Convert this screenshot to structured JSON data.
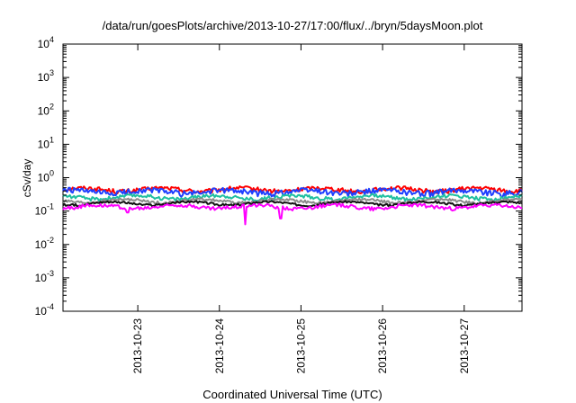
{
  "chart_data": {
    "type": "line",
    "title": "/data/run/goesPlots/archive/2013-10-27/17:00/flux/../bryn/5daysMoon.plot",
    "xlabel": "Coordinated Universal Time (UTC)",
    "ylabel": "cSv/day",
    "yscale": "log",
    "ylim": [
      0.0001,
      10000
    ],
    "y_ticks": [
      {
        "value": 0.0001,
        "base": "10",
        "exp": "-4"
      },
      {
        "value": 0.001,
        "base": "10",
        "exp": "-3"
      },
      {
        "value": 0.01,
        "base": "10",
        "exp": "-2"
      },
      {
        "value": 0.1,
        "base": "10",
        "exp": "-1"
      },
      {
        "value": 1,
        "base": "10",
        "exp": "0"
      },
      {
        "value": 10,
        "base": "10",
        "exp": "1"
      },
      {
        "value": 100,
        "base": "10",
        "exp": "2"
      },
      {
        "value": 1000,
        "base": "10",
        "exp": "3"
      },
      {
        "value": 10000,
        "base": "10",
        "exp": "4"
      }
    ],
    "xlim": [
      "2013-10-22T02:00",
      "2013-10-27T17:00"
    ],
    "x_ticks": [
      "2013-10-23",
      "2013-10-24",
      "2013-10-25",
      "2013-10-26",
      "2013-10-27"
    ],
    "grid": false,
    "legend": "none",
    "series": [
      {
        "color": "#ff0000",
        "base": 0.44,
        "noise": 0.3,
        "dips": []
      },
      {
        "color": "#1e3fff",
        "base": 0.38,
        "noise": 0.4,
        "dips": []
      },
      {
        "color": "#1fbfa0",
        "base": 0.26,
        "noise": 0.25,
        "dips": []
      },
      {
        "color": "#8a8a8a",
        "base": 0.2,
        "noise": 0.18,
        "dips": []
      },
      {
        "color": "#111111",
        "base": 0.17,
        "noise": 0.15,
        "dips": []
      },
      {
        "color": "#ff00ff",
        "base": 0.135,
        "noise": 0.25,
        "dips": [
          {
            "t": "2013-10-22T21:00",
            "value": 0.09
          },
          {
            "t": "2013-10-24T07:40",
            "value": 0.04
          },
          {
            "t": "2013-10-24T18:00",
            "value": 0.06
          }
        ]
      }
    ]
  }
}
